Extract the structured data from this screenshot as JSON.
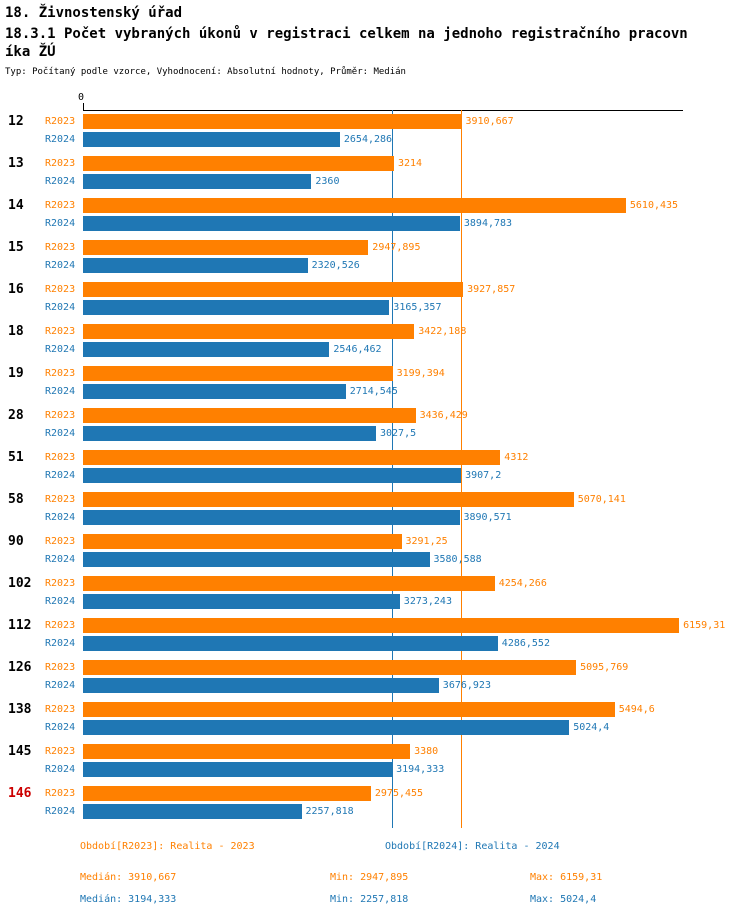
{
  "page_title": "18. Živnostenský úřad",
  "chart_data": {
    "type": "bar",
    "orientation": "horizontal",
    "title": "18.3.1 Počet vybraných úkonů v registraci celkem na jednoho registračního pracovníka ŽÚ",
    "subtitle": "Typ: Počítaný podle vzorce, Vyhodnocení: Absolutní hodnoty, Průměr: Medián",
    "x_axis_zero_label": "0",
    "xlim": [
      0,
      6200
    ],
    "grid": false,
    "legend_position": "bottom",
    "categories": [
      "12",
      "13",
      "14",
      "15",
      "16",
      "18",
      "19",
      "28",
      "51",
      "58",
      "90",
      "102",
      "112",
      "126",
      "138",
      "145",
      "146"
    ],
    "highlight_category": "146",
    "highlight_color": "#cc0000",
    "series": [
      {
        "name": "R2023",
        "color": "#ff8000",
        "legend": "Období[R2023]: Realita - 2023",
        "values": [
          3910.667,
          3214,
          5610.435,
          2947.895,
          3927.857,
          3422.188,
          3199.394,
          3436.429,
          4312,
          5070.141,
          3291.25,
          4254.266,
          6159.31,
          5095.769,
          5494.6,
          3380,
          2975.455
        ],
        "value_labels": [
          "3910,667",
          "3214",
          "5610,435",
          "2947,895",
          "3927,857",
          "3422,188",
          "3199,394",
          "3436,429",
          "4312",
          "5070,141",
          "3291,25",
          "4254,266",
          "6159,31",
          "5095,769",
          "5494,6",
          "3380",
          "2975,455"
        ]
      },
      {
        "name": "R2024",
        "color": "#1f77b4",
        "legend": "Období[R2024]: Realita - 2024",
        "values": [
          2654.286,
          2360,
          3894.783,
          2320.526,
          3165.357,
          2546.462,
          2714.545,
          3027.5,
          3907.2,
          3890.571,
          3580.588,
          3273.243,
          4286.552,
          3676.923,
          5024.4,
          3194.333,
          2257.818
        ],
        "value_labels": [
          "2654,286",
          "2360",
          "3894,783",
          "2320,526",
          "3165,357",
          "2546,462",
          "2714,545",
          "3027,5",
          "3907,2",
          "3890,571",
          "3580,588",
          "3273,243",
          "4286,552",
          "3676,923",
          "5024,4",
          "3194,333",
          "2257,818"
        ]
      }
    ],
    "reference_lines": [
      {
        "name": "median-r2023-line",
        "value": 3910.667,
        "color": "#ff8000"
      },
      {
        "name": "median-r2024-line",
        "value": 3194.333,
        "color": "#1f77b4"
      }
    ],
    "stats": {
      "r2023": {
        "median": "Medián: 3910,667",
        "min": "Min: 2947,895",
        "max": "Max: 6159,31"
      },
      "r2024": {
        "median": "Medián: 3194,333",
        "min": "Min: 2257,818",
        "max": "Max: 5024,4"
      }
    }
  }
}
